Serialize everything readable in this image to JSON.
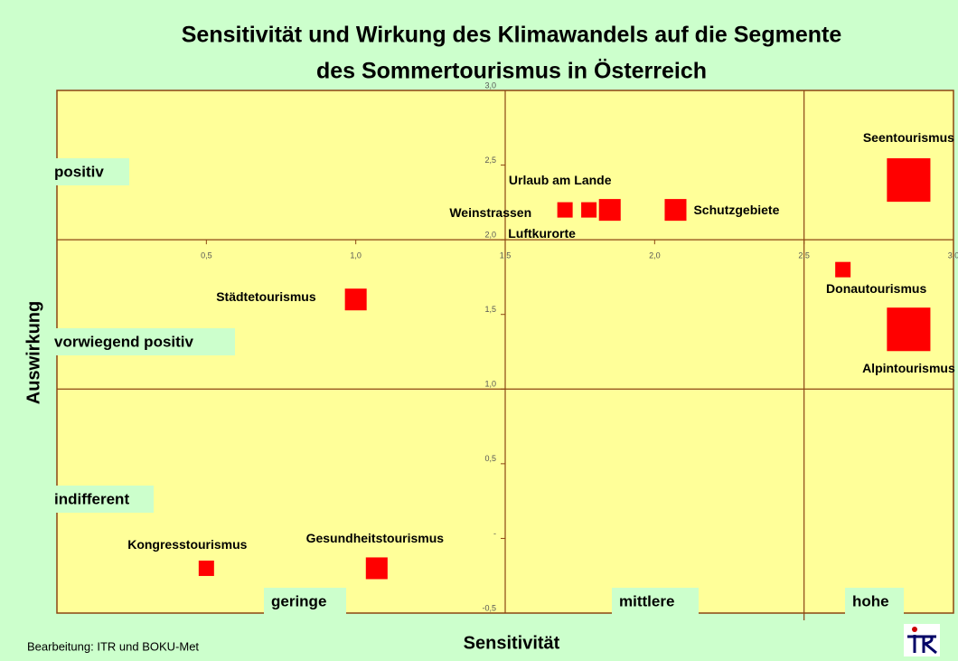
{
  "chart_data": {
    "type": "bubble",
    "title": [
      "Sensitivität und Wirkung des Klimawandels auf die Segmente",
      "des Sommertourismus in Österreich"
    ],
    "x_label": "Sensitivität",
    "y_label": "Auswirkung",
    "footer": "Bearbeitung: ITR und BOKU-Met",
    "x_bands": [
      "geringe",
      "mittlere",
      "hohe"
    ],
    "y_bands": [
      "positiv",
      "vorwiegend positiv",
      "indifferent"
    ],
    "xlim": [
      0,
      3
    ],
    "ylim": [
      -0.5,
      3
    ],
    "x_cross": 2,
    "y_cross": 1.5,
    "xticks": [
      {
        "value": 0.5,
        "label": "0,5"
      },
      {
        "value": 1,
        "label": "1,0"
      },
      {
        "value": 1.5,
        "label": "1,5"
      },
      {
        "value": 2,
        "label": "2,0"
      },
      {
        "value": 2.5,
        "label": "2,5"
      },
      {
        "value": 3,
        "label": "3,0"
      }
    ],
    "yticks": [
      {
        "value": -0.5,
        "label": "-0,5"
      },
      {
        "value": 0,
        "label": "-"
      },
      {
        "value": 0.5,
        "label": "0,5"
      },
      {
        "value": 1,
        "label": "1,0"
      },
      {
        "value": 1.5,
        "label": "1,5"
      },
      {
        "value": 2,
        "label": "2,0"
      },
      {
        "value": 2.5,
        "label": "2,5"
      },
      {
        "value": 3,
        "label": "3,0"
      }
    ],
    "divider_x": 2.5,
    "divider_y": 1,
    "color": "#ff0000",
    "names": [
      "Seentourismus",
      "Alpintourismus",
      "Donautourismus",
      "Schutzgebiete",
      "Urlaub am Lande",
      "Luftkurorte",
      "Weinstrassen",
      "Städtetourismus",
      "Kongresstourismus",
      "Gesundheitstourismus"
    ],
    "x": [
      2.85,
      2.85,
      2.63,
      2.07,
      1.85,
      1.78,
      1.7,
      1.0,
      0.5,
      1.07
    ],
    "y": [
      2.4,
      1.4,
      1.8,
      2.2,
      2.2,
      2.2,
      2.2,
      1.6,
      -0.2,
      -0.2
    ],
    "sizes": [
      8,
      8,
      1,
      2,
      2,
      1,
      1,
      2,
      1,
      2
    ]
  }
}
